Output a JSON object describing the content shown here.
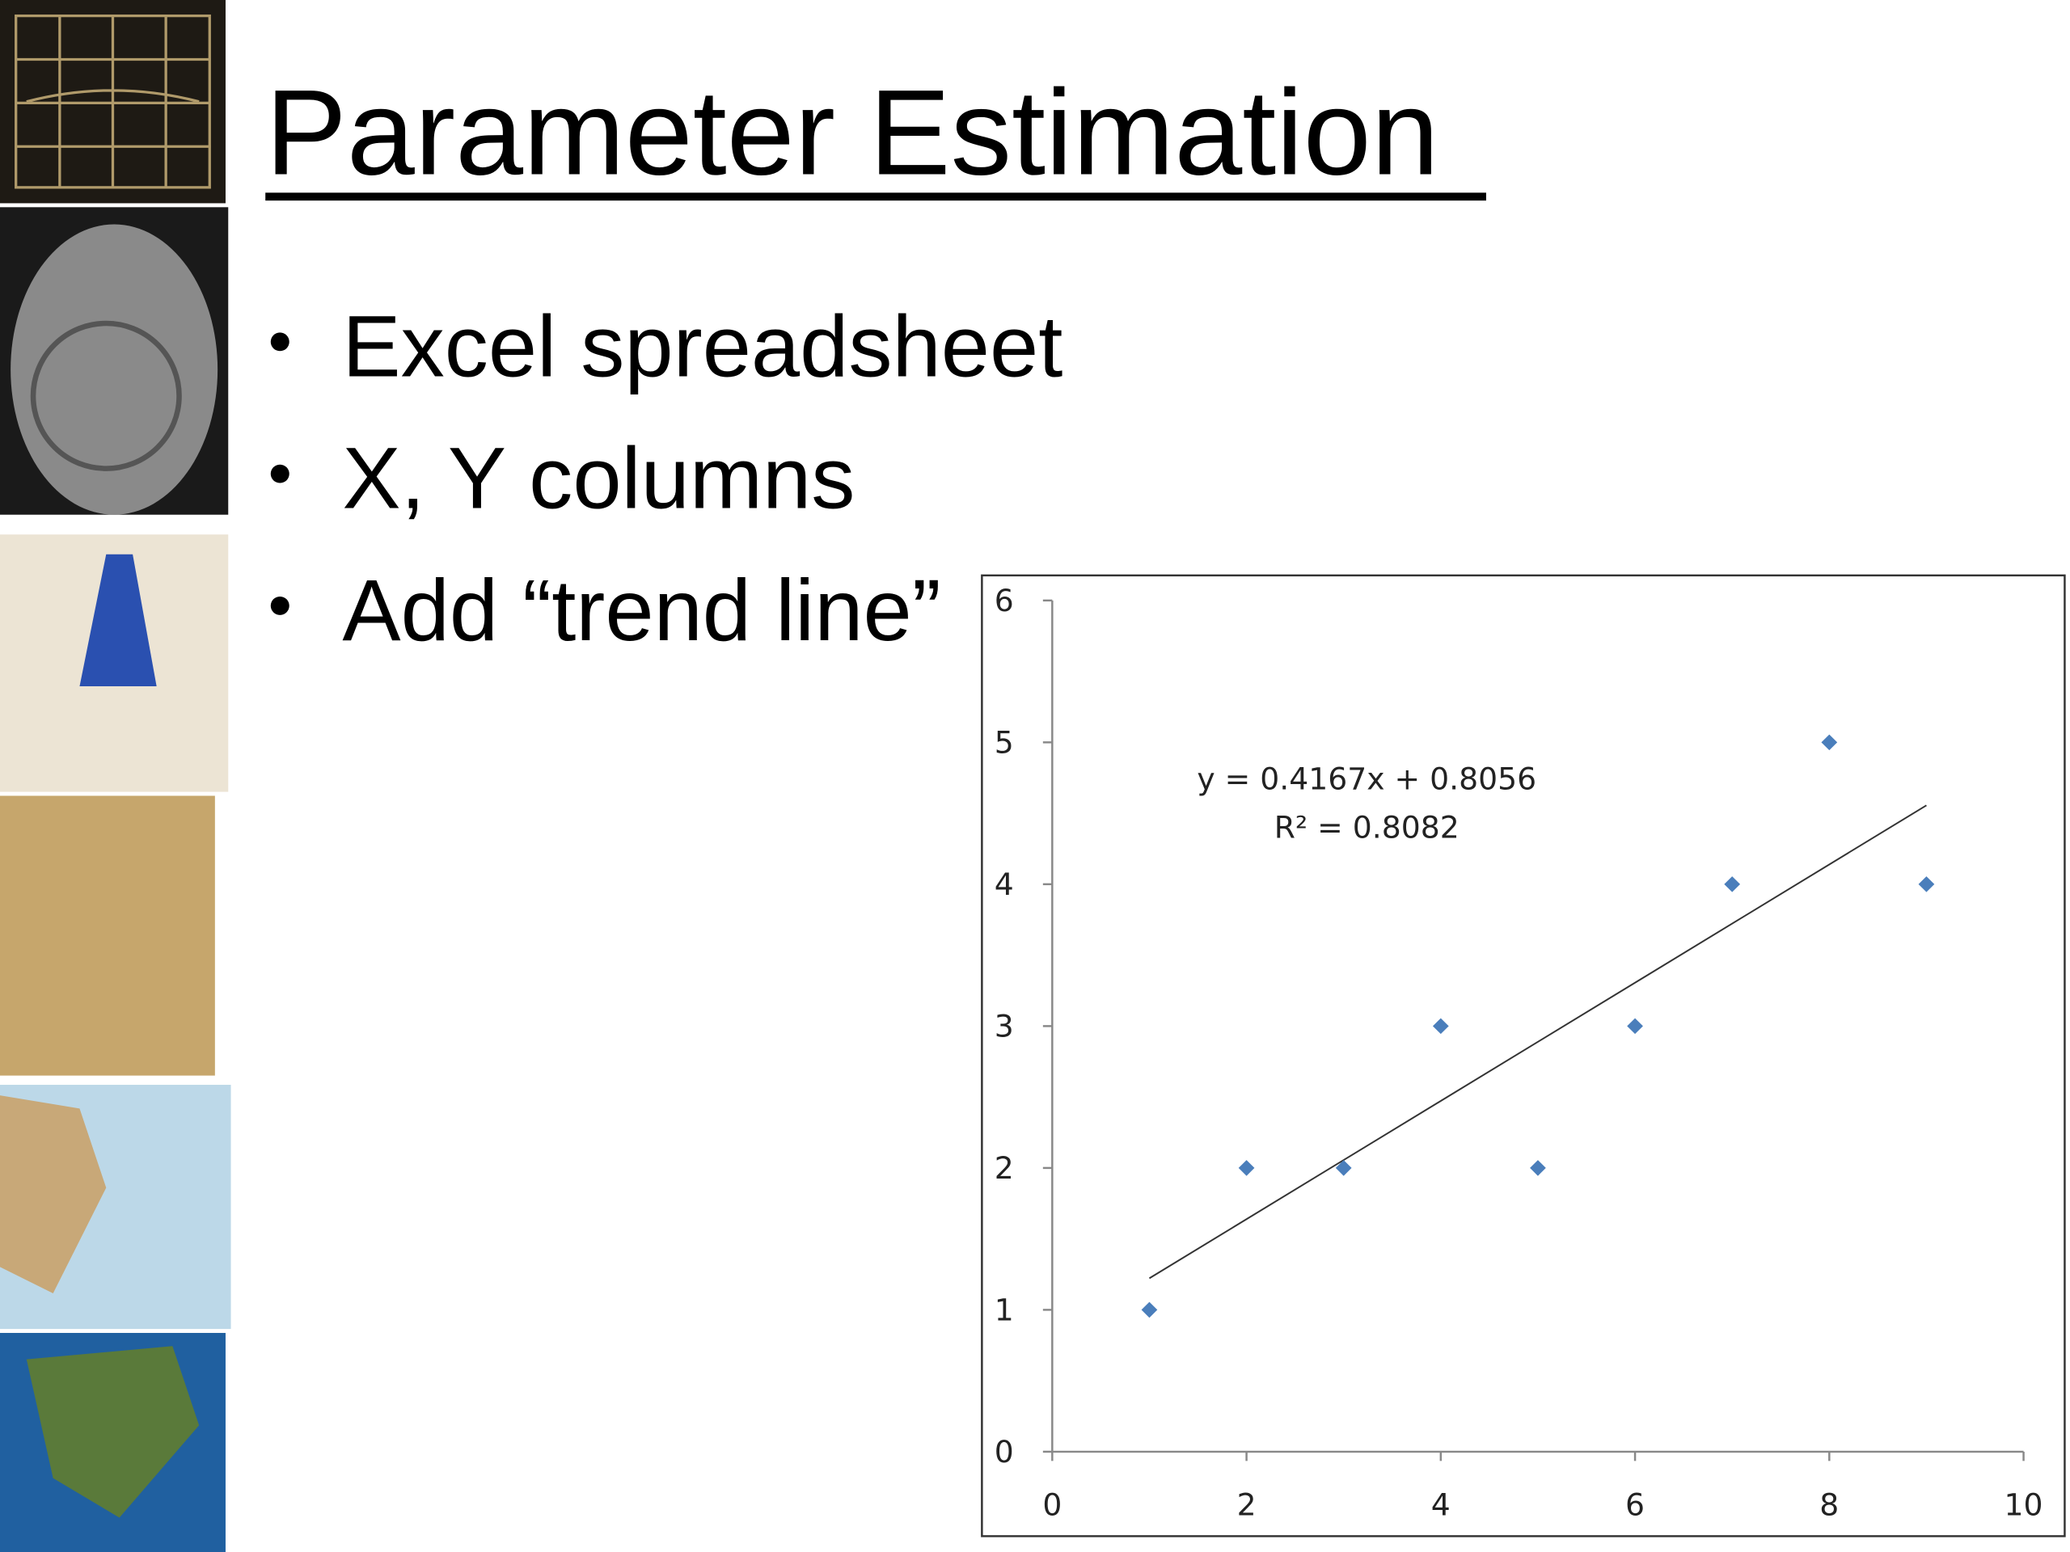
{
  "title": "Parameter Estimation",
  "bullets": [
    "Excel spreadsheet",
    "X, Y columns",
    "Add “trend line”"
  ],
  "chart_data": {
    "type": "scatter",
    "x": [
      1,
      2,
      3,
      4,
      5,
      6,
      7,
      8,
      9
    ],
    "series": [
      {
        "color": "#4a7ebb",
        "values": [
          1,
          2,
          2,
          3,
          2,
          3,
          4,
          5,
          4
        ]
      }
    ],
    "trendline": {
      "slope": 0.4167,
      "intercept": 0.8056,
      "color": "#333333"
    },
    "annotations": [
      "y = 0.4167x + 0.8056",
      "R² = 0.8082"
    ],
    "xlim": [
      0,
      10
    ],
    "xticks": [
      0,
      2,
      4,
      6,
      8,
      10
    ],
    "ylim": [
      0,
      6
    ],
    "yticks": [
      0,
      1,
      2,
      3,
      4,
      5,
      6
    ],
    "grid": false
  }
}
